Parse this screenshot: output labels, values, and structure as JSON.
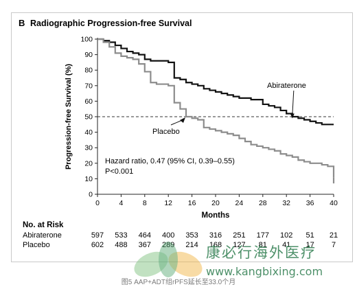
{
  "panel_letter": "B",
  "chart_data": {
    "type": "line",
    "title": "Radiographic Progression-free Survival",
    "xlabel": "Months",
    "ylabel": "Progression-free Survival (%)",
    "xlim": [
      0,
      40
    ],
    "ylim": [
      0,
      100
    ],
    "x_ticks": [
      0,
      4,
      8,
      12,
      16,
      20,
      24,
      28,
      32,
      36,
      40
    ],
    "y_ticks": [
      0,
      10,
      20,
      30,
      40,
      50,
      60,
      70,
      80,
      90,
      100
    ],
    "reference_line": {
      "y": 50,
      "style": "dashed"
    },
    "series": [
      {
        "name": "Abiraterone",
        "color": "#111111",
        "points": [
          [
            0,
            100
          ],
          [
            1,
            99
          ],
          [
            2,
            98
          ],
          [
            3,
            96
          ],
          [
            4,
            94
          ],
          [
            5,
            92
          ],
          [
            6,
            91
          ],
          [
            7,
            90
          ],
          [
            8,
            87
          ],
          [
            9,
            86
          ],
          [
            10,
            86
          ],
          [
            11,
            86
          ],
          [
            12,
            85
          ],
          [
            13,
            75
          ],
          [
            14,
            74
          ],
          [
            15,
            72
          ],
          [
            16,
            71
          ],
          [
            17,
            70
          ],
          [
            18,
            68
          ],
          [
            19,
            67
          ],
          [
            20,
            66
          ],
          [
            21,
            65
          ],
          [
            22,
            64
          ],
          [
            23,
            63
          ],
          [
            24,
            62
          ],
          [
            25,
            62
          ],
          [
            26,
            61
          ],
          [
            27,
            61
          ],
          [
            28,
            58
          ],
          [
            29,
            57
          ],
          [
            30,
            56
          ],
          [
            31,
            54
          ],
          [
            32,
            52
          ],
          [
            33,
            50
          ],
          [
            34,
            49
          ],
          [
            35,
            48
          ],
          [
            36,
            47
          ],
          [
            37,
            46
          ],
          [
            38,
            45
          ],
          [
            40,
            45
          ]
        ]
      },
      {
        "name": "Placebo",
        "color": "#8c8c8c",
        "points": [
          [
            0,
            100
          ],
          [
            1,
            98
          ],
          [
            2,
            95
          ],
          [
            3,
            91
          ],
          [
            4,
            89
          ],
          [
            5,
            88
          ],
          [
            6,
            87
          ],
          [
            7,
            84
          ],
          [
            8,
            79
          ],
          [
            9,
            72
          ],
          [
            10,
            71
          ],
          [
            11,
            71
          ],
          [
            12,
            70
          ],
          [
            13,
            59
          ],
          [
            14,
            55
          ],
          [
            15,
            50
          ],
          [
            16,
            49
          ],
          [
            17,
            48
          ],
          [
            18,
            43
          ],
          [
            19,
            42
          ],
          [
            20,
            41
          ],
          [
            21,
            40
          ],
          [
            22,
            39
          ],
          [
            23,
            38
          ],
          [
            24,
            36
          ],
          [
            25,
            34
          ],
          [
            26,
            32
          ],
          [
            27,
            31
          ],
          [
            28,
            30
          ],
          [
            29,
            29
          ],
          [
            30,
            28
          ],
          [
            31,
            26
          ],
          [
            32,
            25
          ],
          [
            33,
            24
          ],
          [
            34,
            22
          ],
          [
            35,
            21
          ],
          [
            36,
            20
          ],
          [
            37,
            20
          ],
          [
            38,
            19
          ],
          [
            39,
            18
          ],
          [
            40,
            11
          ]
        ]
      }
    ],
    "annotations": [
      {
        "label": "Abiraterone",
        "arrow_to": [
          33,
          48
        ]
      },
      {
        "label": "Placebo",
        "arrow_to": [
          15,
          50
        ]
      }
    ],
    "stats_text": [
      "Hazard ratio, 0.47 (95% CI, 0.39–0.55)",
      "P<0.001"
    ]
  },
  "risk_table": {
    "title": "No. at Risk",
    "rows": [
      {
        "label": "Abiraterone",
        "values": [
          "597",
          "533",
          "464",
          "400",
          "353",
          "316",
          "251",
          "177",
          "102",
          "51",
          "21"
        ]
      },
      {
        "label": "Placebo",
        "values": [
          "602",
          "488",
          "367",
          "289",
          "214",
          "168",
          "127",
          "81",
          "41",
          "17",
          "7"
        ]
      }
    ]
  },
  "watermark": {
    "text": "康必行海外医疗",
    "url": "www.kangbixing.com",
    "logo_icon": "lotus-icon"
  },
  "caption": "图5 AAP+ADT组rPFS延长至33.0个月"
}
